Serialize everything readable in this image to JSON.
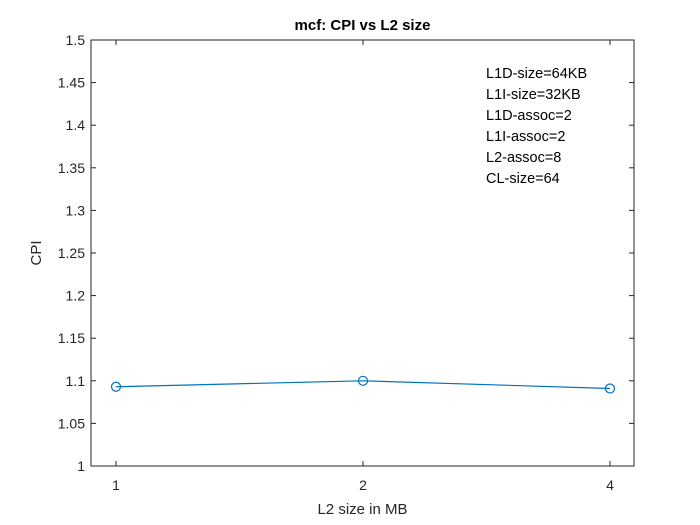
{
  "chart_data": {
    "type": "line",
    "title": "mcf: CPI vs L2 size",
    "xlabel": "L2 size in MB",
    "ylabel": "CPI",
    "categories": [
      "1",
      "2",
      "4"
    ],
    "series": [
      {
        "values": [
          1.093,
          1.1,
          1.091
        ],
        "marker": "circle",
        "color": "#0072BD"
      }
    ],
    "ylim": [
      1,
      1.5
    ],
    "yticks": [
      "1",
      "1.05",
      "1.1",
      "1.15",
      "1.2",
      "1.25",
      "1.3",
      "1.35",
      "1.4",
      "1.45",
      "1.5"
    ],
    "grid": false,
    "annotation": [
      "L1D-size=64KB",
      "L1I-size=32KB",
      "L1D-assoc=2",
      "L1I-assoc=2",
      "L2-assoc=8",
      "CL-size=64"
    ]
  }
}
